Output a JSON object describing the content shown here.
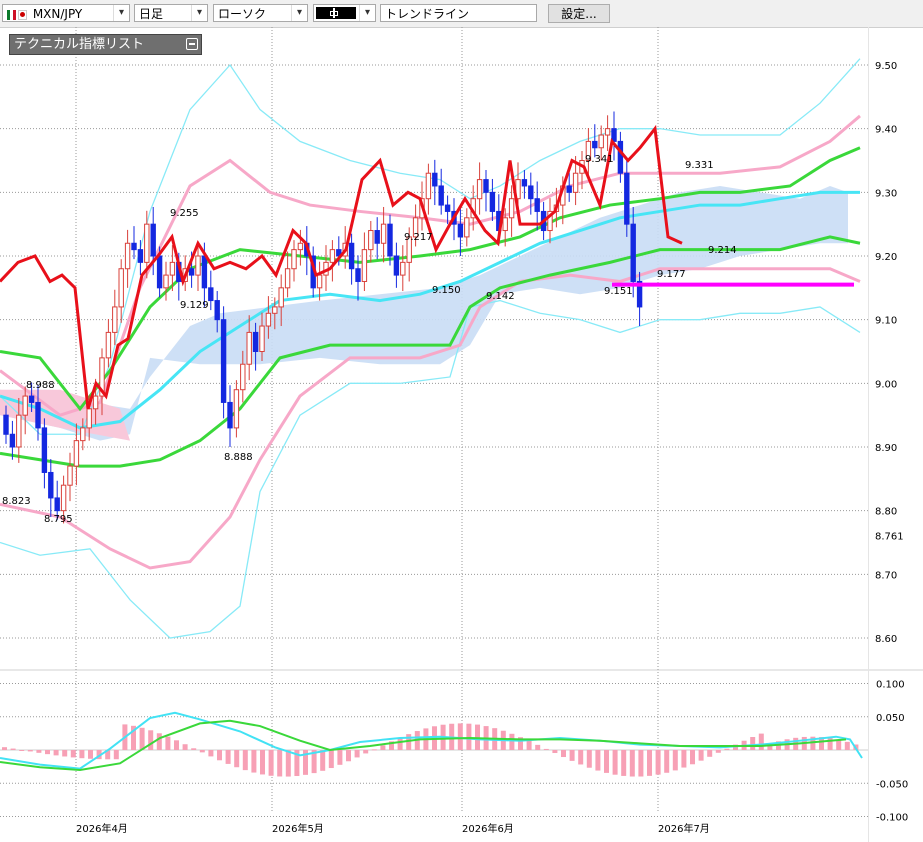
{
  "toolbar": {
    "pair": "MXN/JPY",
    "period": "日足",
    "chart_style": "ローソク",
    "drawing_tool": "トレンドライン",
    "settings_label": "設定..."
  },
  "indicator_panel": {
    "title": "テクニカル指標リスト"
  },
  "colors": {
    "bull_candle": "#d9403a",
    "bear_candle": "#1428e0",
    "rci_line": "#e8101a",
    "bollinger_outer": "#88eaf7",
    "bollinger_2": "#f7a8c8",
    "bollinger_1": "#3ad83a",
    "moving_average": "#47e5f5",
    "cloud": "#c9ddf5",
    "support_line": "#ff00ff"
  },
  "chart_data": {
    "type": "candlestick",
    "y_axis": {
      "ticks": [
        "9.50",
        "9.40",
        "9.30",
        "9.20",
        "9.10",
        "9.00",
        "8.90",
        "8.80",
        "8.761",
        "8.70",
        "8.60"
      ],
      "min": 8.55,
      "max": 9.55
    },
    "x_axis": {
      "ticks": [
        "2026年4月",
        "2026年5月",
        "2026年6月",
        "2026年7月"
      ]
    },
    "price_annotations": [
      "8.988",
      "8.823",
      "8.795",
      "9.255",
      "9.129",
      "8.888",
      "9.217",
      "9.150",
      "9.142",
      "9.341",
      "9.151",
      "9.177",
      "9.331",
      "9.214"
    ],
    "current_price_label": "8.761",
    "support_level": 9.155,
    "sub_chart": {
      "type": "macd",
      "y_axis": {
        "ticks": [
          "0.100",
          "0.050",
          "-0.050",
          "-0.100"
        ],
        "min": -0.1,
        "max": 0.1
      }
    }
  }
}
